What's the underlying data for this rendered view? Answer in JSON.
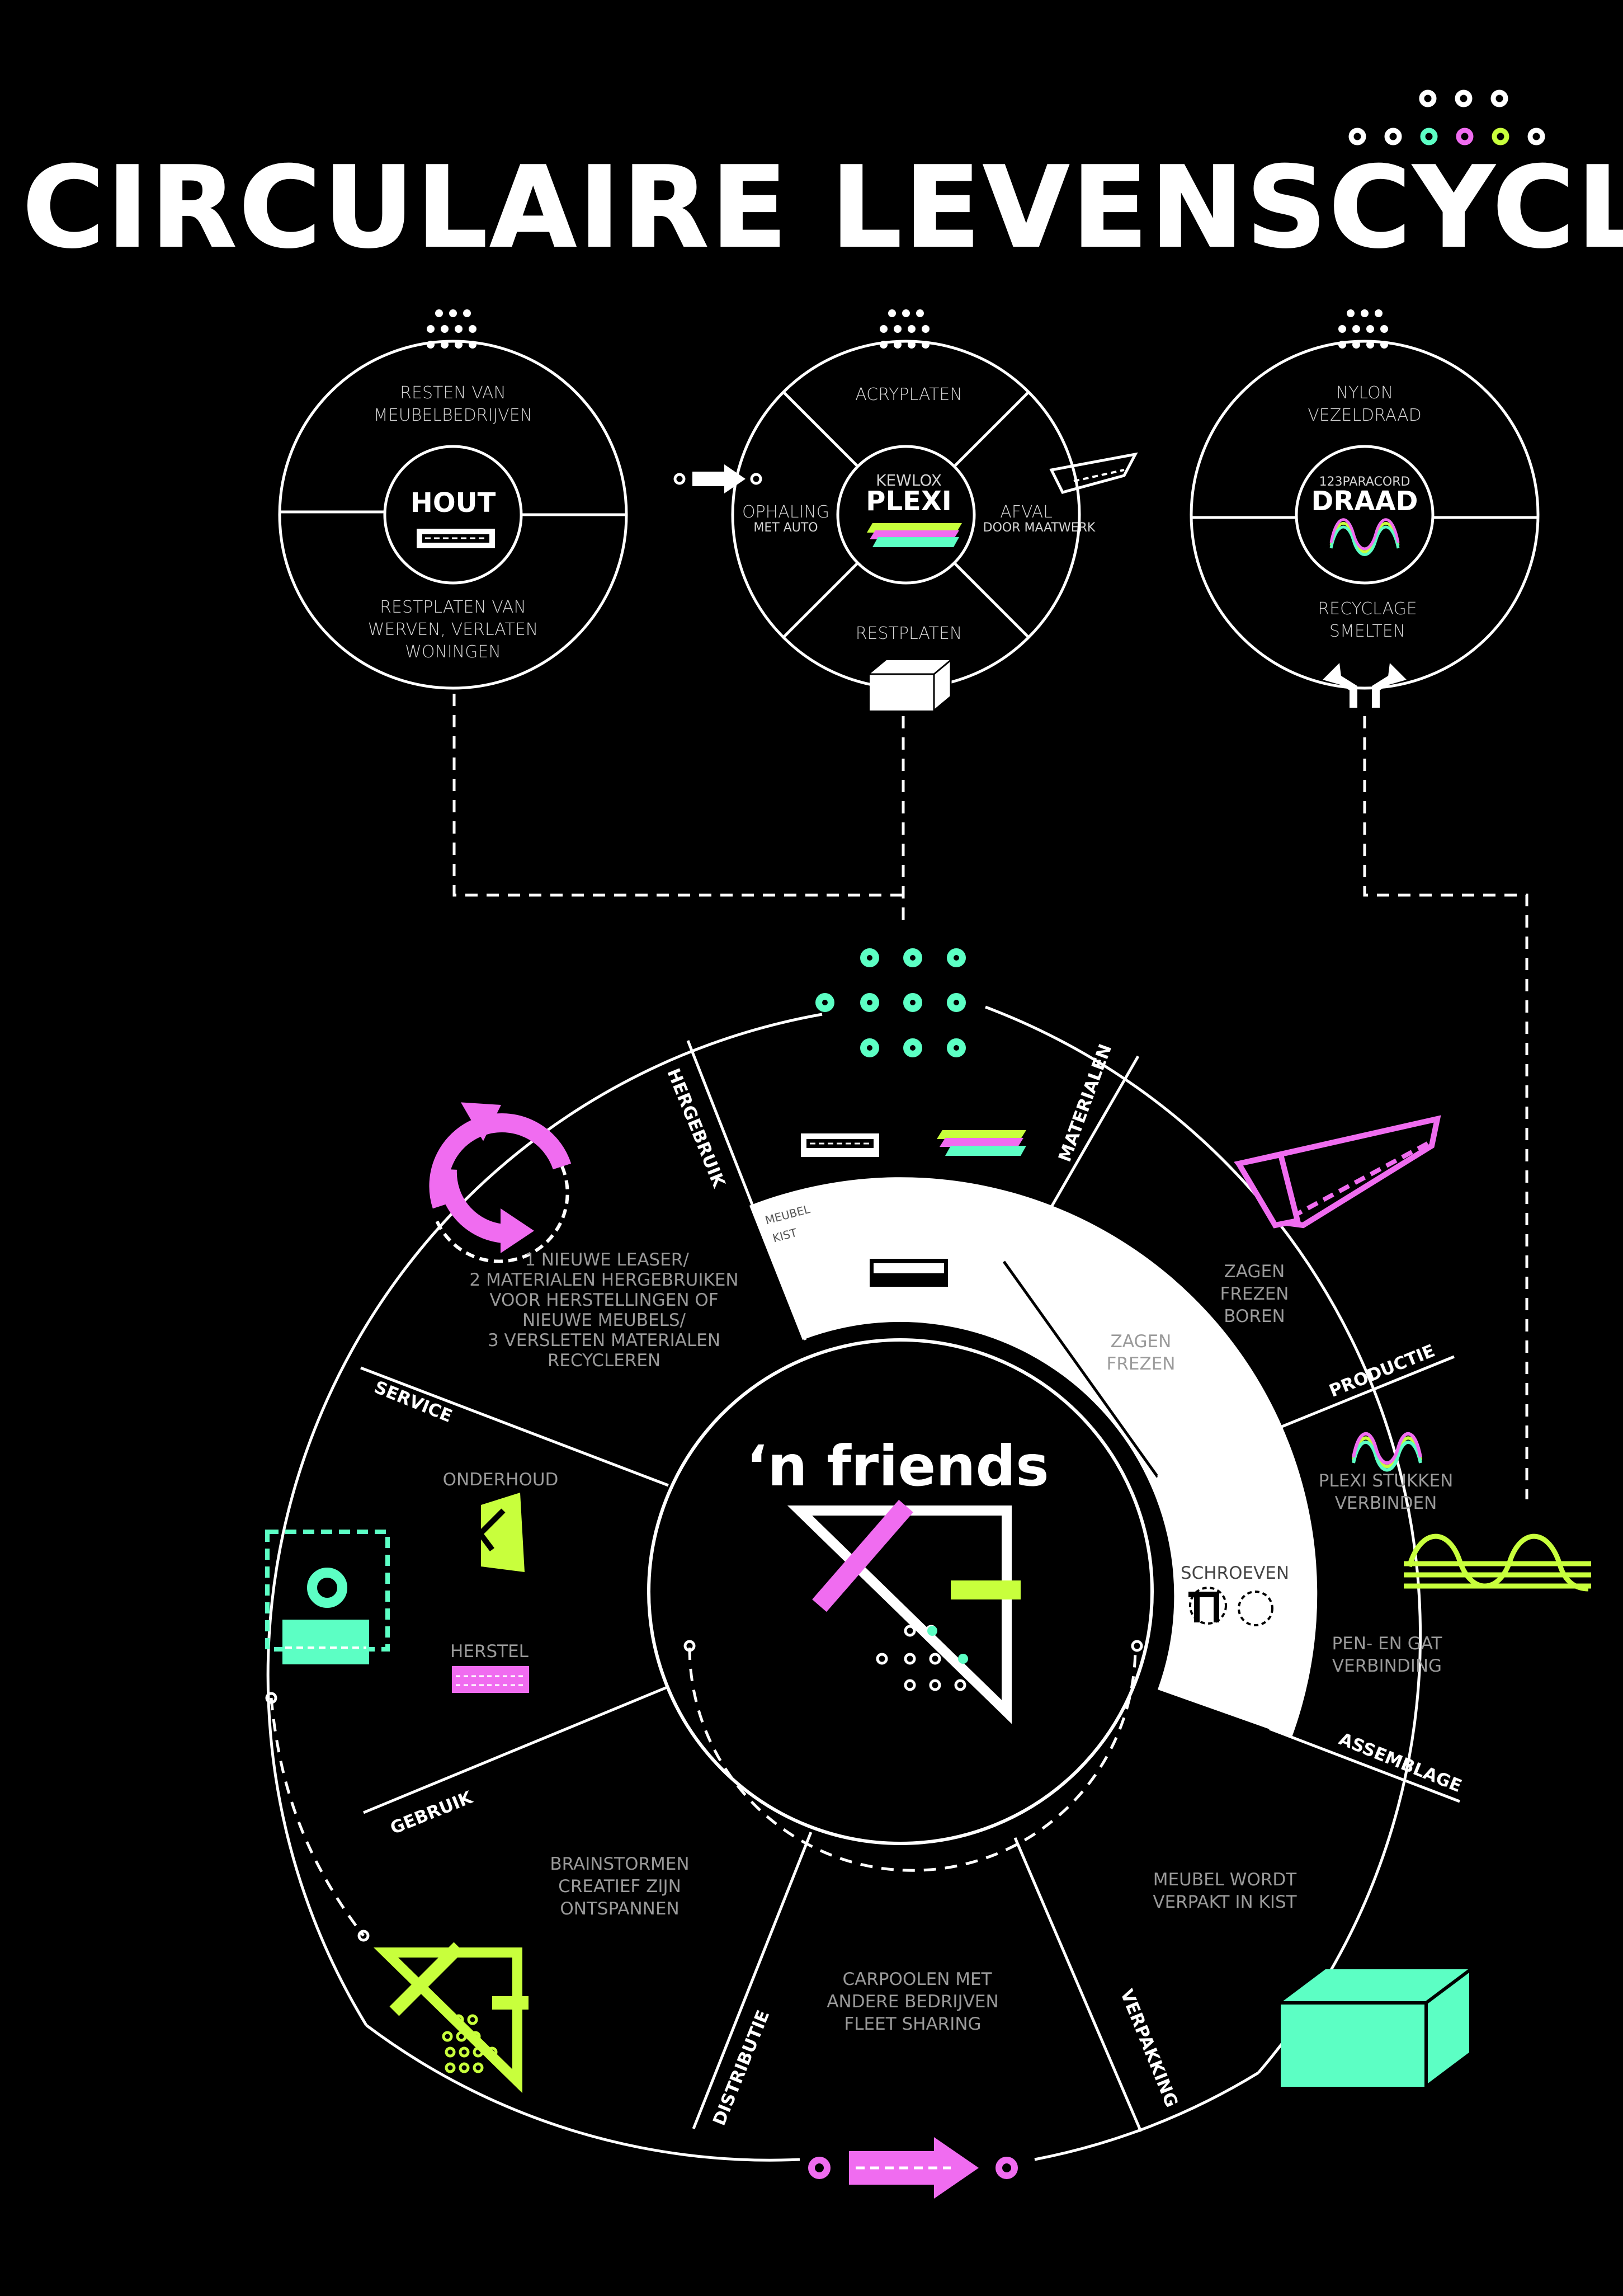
{
  "title": "CIRCULAIRE LEVENSCYCLUS",
  "colors": {
    "mint": "#5cffc4",
    "pink": "#f06cf0",
    "lime": "#c8ff3c",
    "white": "#ffffff",
    "bg": "#000000"
  },
  "sources": {
    "hout": {
      "core": "HOUT",
      "top": [
        "RESTEN VAN",
        "MEUBELBEDRIJVEN"
      ],
      "bottom": [
        "RESTPLATEN VAN",
        "WERVEN, VERLATEN",
        "WONINGEN"
      ]
    },
    "plexi": {
      "core_top": "KEWLOX",
      "core": "PLEXI",
      "top": "ACRYPLATEN",
      "left": "OPHALING",
      "left_sub": "MET AUTO",
      "right": "AFVAL",
      "right_sub": "DOOR MAATWERK",
      "bottom": "RESTPLATEN"
    },
    "draad": {
      "core_top": "123PARACORD",
      "core": "DRAAD",
      "top": [
        "NYLON",
        "VEZELDRAAD"
      ],
      "bottom": [
        "RECYCLAGE",
        "SMELTEN"
      ]
    }
  },
  "segments": {
    "materialen": "MATERIALEN",
    "productie": "PRODUCTIE",
    "assemblage": "ASSEMBLAGE",
    "verpakking": "VERPAKKING",
    "distributie": "DISTRIBUTIE",
    "gebruik": "GEBRUIK",
    "service": "SERVICE",
    "hergebruik": "HERGEBRUIK"
  },
  "texts": {
    "productie": [
      "ZAGEN",
      "FREZEN",
      "BOREN"
    ],
    "productie_inner": [
      "ZAGEN",
      "FREZEN"
    ],
    "assemblage_top": [
      "PLEXI STUKKEN",
      "VERBINDEN"
    ],
    "assemblage_bottom": [
      "PEN- EN GAT",
      "VERBINDING"
    ],
    "assemblage_inner": "SCHROEVEN",
    "verpakking": [
      "MEUBEL WORDT",
      "VERPAKT IN KIST"
    ],
    "distributie": [
      "CARPOOLEN MET",
      "ANDERE BEDRIJVEN",
      "FLEET SHARING"
    ],
    "gebruik": [
      "BRAINSTORMEN",
      "CREATIEF ZIJN",
      "ONTSPANNEN"
    ],
    "service_top": "ONDERHOUD",
    "service_bottom": "HERSTEL",
    "hergebruik": [
      "1 NIEUWE LEASER/",
      "2 MATERIALEN HERGEBRUIKEN",
      "VOOR HERSTELLINGEN OF",
      "NIEUWE MEUBELS/",
      "3 VERSLETEN MATERIALEN",
      "RECYCLEREN"
    ],
    "materialen_inner": [
      "MEUBEL",
      "KIST"
    ]
  },
  "center": {
    "brand": "‘n friends"
  }
}
